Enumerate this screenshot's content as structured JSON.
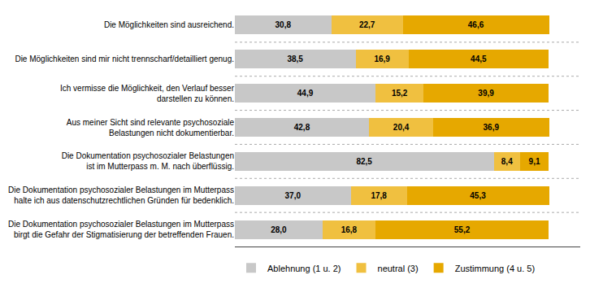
{
  "chart_data": {
    "type": "bar",
    "orientation": "horizontal",
    "stacked": true,
    "data_labels": true,
    "tick_labels": "y",
    "grid": false,
    "legend": "lower left",
    "categories": [
      "Die Möglichkeiten sind ausreichend.",
      "Die Möglichkeiten sind mir nicht trennscharf/detailliert genug.",
      "Ich vermisse die Möglichkeit, den Verlauf besser\ndarstellen zu können.",
      "Aus meiner Sicht sind relevante psychosoziale\nBelastungen nicht dokumentierbar.",
      "Die Dokumentation psychosozialer Belastungen\nist im Mutterpass m. M. nach überflüssig.",
      "Die Dokumentation psychosozialer Belastungen im Mutterpass\nhalte ich aus datenschutzrechtlichen Gründen für bedenklich.",
      "Die Dokumentation psychosozialer Belastungen im Mutterpass\nbirgt die Gefahr der Stigmatisierung der betreffenden Frauen."
    ],
    "series": [
      {
        "name": "Ablehnung (1 u. 2)",
        "color": "#c8c8c8",
        "values": [
          30.8,
          38.5,
          44.9,
          42.8,
          82.5,
          37.0,
          28.0
        ],
        "value_labels": [
          "30,8",
          "38,5",
          "44,9",
          "42,8",
          "82,5",
          "37,0",
          "28,0"
        ]
      },
      {
        "name": "neutral (3)",
        "color": "#f0c040",
        "values": [
          22.7,
          16.9,
          15.2,
          20.4,
          8.4,
          17.8,
          16.8
        ],
        "value_labels": [
          "22,7",
          "16,9",
          "15,2",
          "20,4",
          "8,4",
          "17,8",
          "16,8"
        ]
      },
      {
        "name": "Zustimmung (4 u. 5)",
        "color": "#e6a800",
        "values": [
          46.6,
          44.5,
          39.9,
          36.9,
          9.1,
          45.3,
          55.2
        ],
        "value_labels": [
          "46,6",
          "44,5",
          "39,9",
          "36,9",
          "9,1",
          "45,3",
          "55,2"
        ]
      }
    ],
    "xlim": [
      0,
      110
    ]
  }
}
